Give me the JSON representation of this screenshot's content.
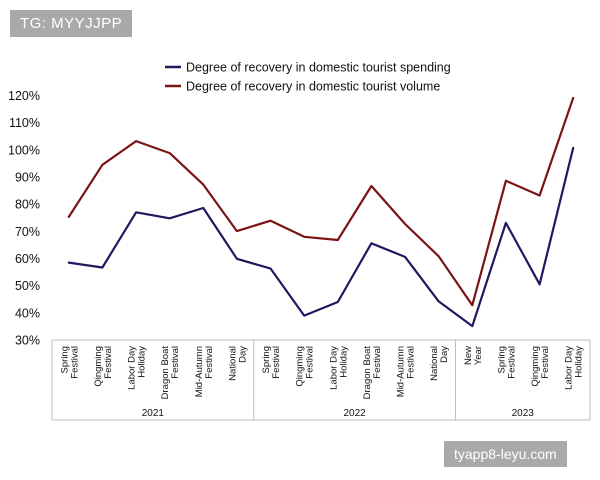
{
  "watermark_tag": "TG: MYYJJPP",
  "watermark_url": "tyapp8-leyu.com",
  "chart_data": {
    "type": "line",
    "title": "",
    "xlabel": "",
    "ylabel": "",
    "ylim": [
      30,
      120
    ],
    "y_ticks": [
      "30%",
      "40%",
      "50%",
      "60%",
      "70%",
      "80%",
      "90%",
      "100%",
      "110%",
      "120%"
    ],
    "legend_position": "top",
    "categories": [
      {
        "label": [
          "Spring",
          "Festival"
        ],
        "year": "2021"
      },
      {
        "label": [
          "Qingming",
          "Festival"
        ],
        "year": "2021"
      },
      {
        "label": [
          "Labor Day",
          "Holiday"
        ],
        "year": "2021"
      },
      {
        "label": [
          "Dragon Boat",
          "Festival"
        ],
        "year": "2021"
      },
      {
        "label": [
          "Mid-Autumn",
          "Festival"
        ],
        "year": "2021"
      },
      {
        "label": [
          "National",
          "Day"
        ],
        "year": "2021"
      },
      {
        "label": [
          "Spring",
          "Festival"
        ],
        "year": "2022"
      },
      {
        "label": [
          "Qingming",
          "Festival"
        ],
        "year": "2022"
      },
      {
        "label": [
          "Labor Day",
          "Holiday"
        ],
        "year": "2022"
      },
      {
        "label": [
          "Dragon Boat",
          "Festival"
        ],
        "year": "2022"
      },
      {
        "label": [
          "Mid-Autumn",
          "Festival"
        ],
        "year": "2022"
      },
      {
        "label": [
          "National",
          "Day"
        ],
        "year": "2022"
      },
      {
        "label": [
          "New",
          "Year"
        ],
        "year": "2023"
      },
      {
        "label": [
          "Spring",
          "Festival"
        ],
        "year": "2023"
      },
      {
        "label": [
          "Qingming",
          "Festival"
        ],
        "year": "2023"
      },
      {
        "label": [
          "Labor Day",
          "Holiday"
        ],
        "year": "2023"
      }
    ],
    "year_groups": [
      {
        "year": "2021",
        "count": 6
      },
      {
        "year": "2022",
        "count": 6
      },
      {
        "year": "2023",
        "count": 4
      }
    ],
    "series": [
      {
        "name": "Degree of recovery in domestic tourist spending",
        "color": "#1f1a5e",
        "values": [
          58.5,
          56.7,
          77.0,
          74.8,
          78.6,
          59.9,
          56.3,
          39.0,
          44.0,
          65.6,
          60.6,
          44.2,
          35.1,
          73.1,
          50.5,
          100.7
        ]
      },
      {
        "name": "Degree of recovery in domestic tourist volume",
        "color": "#7a1416",
        "values": [
          75.3,
          94.5,
          103.2,
          98.8,
          87.2,
          70.1,
          73.9,
          68.0,
          66.8,
          86.7,
          72.7,
          60.8,
          42.8,
          88.6,
          83.2,
          119.1
        ]
      }
    ]
  }
}
